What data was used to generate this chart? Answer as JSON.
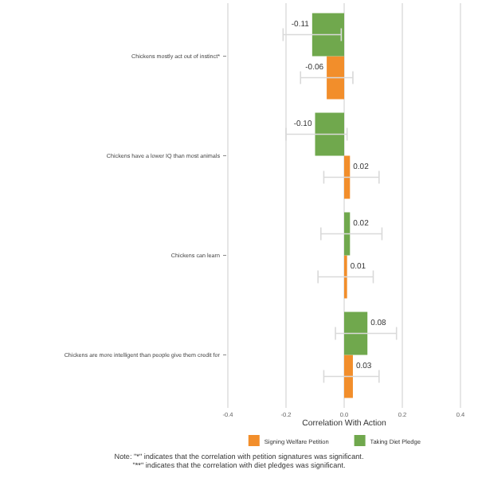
{
  "chart_data": {
    "type": "bar",
    "orientation": "horizontal",
    "xlabel": "Correlation With Action",
    "categories": [
      "Chickens mostly act out of instinct*",
      "Chickens have a lower IQ than most animals",
      "Chickens can learn",
      "Chickens are more intelligent than people give them credit for"
    ],
    "series": [
      {
        "name": "Signing Welfare Petition",
        "color": "#f28e2b",
        "values": [
          -0.06,
          0.02,
          0.01,
          0.03
        ],
        "value_labels": [
          "-0.06",
          "0.02",
          "0.01",
          "0.03"
        ],
        "errors": [
          [
            -0.15,
            0.03
          ],
          [
            -0.07,
            0.12
          ],
          [
            -0.09,
            0.1
          ],
          [
            -0.07,
            0.12
          ]
        ]
      },
      {
        "name": "Taking Diet Pledge",
        "color": "#70a84d",
        "values": [
          -0.11,
          -0.1,
          0.02,
          0.08
        ],
        "value_labels": [
          "-0.11",
          "-0.10",
          "0.02",
          "0.08"
        ],
        "errors": [
          [
            -0.21,
            -0.01
          ],
          [
            -0.2,
            0.01
          ],
          [
            -0.08,
            0.13
          ],
          [
            -0.03,
            0.18
          ]
        ]
      }
    ],
    "xlim": [
      -0.4,
      0.4
    ],
    "xticks": [
      {
        "value": -0.4,
        "label": "-0.4"
      },
      {
        "value": -0.2,
        "label": "-0.2"
      },
      {
        "value": 0,
        "label": "0.0"
      },
      {
        "value": 0.2,
        "label": "0.2"
      },
      {
        "value": 0.4,
        "label": "0.4"
      }
    ],
    "grid": "x",
    "legend": "bottom",
    "annotations": [
      "Note: \"*\" indicates that the correlation with petition signatures was significant. \"**\" indicates that the correlation with diet pledges was significant."
    ]
  }
}
